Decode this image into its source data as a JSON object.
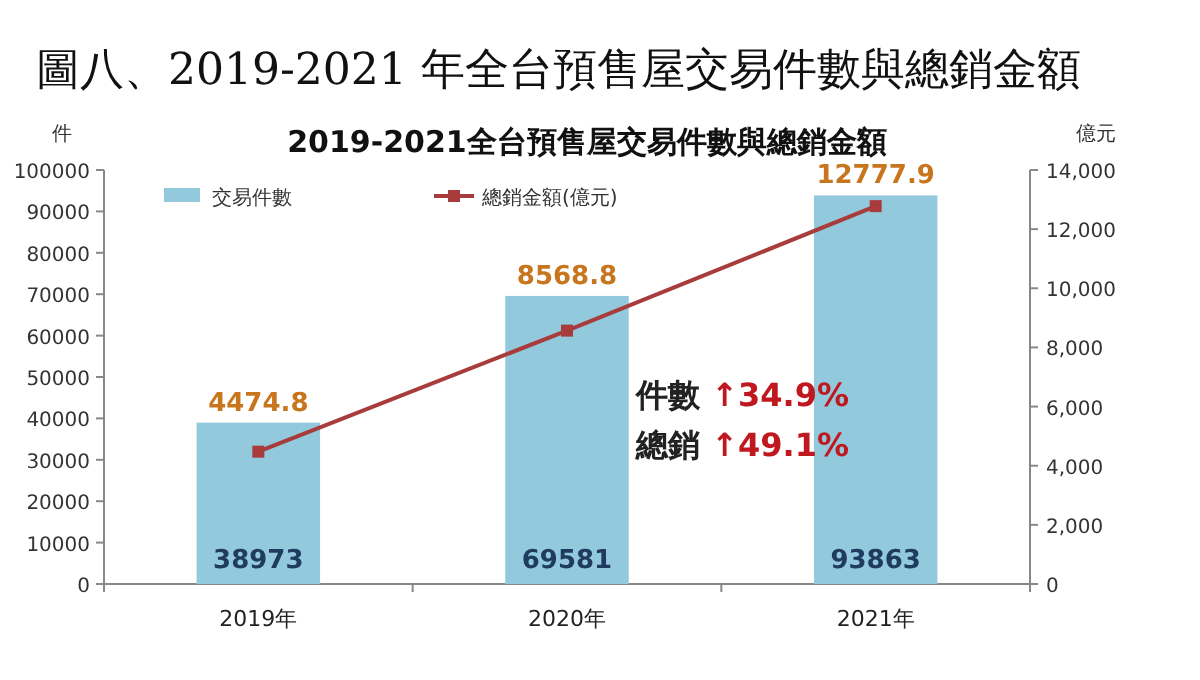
{
  "chart_data": {
    "type": "bar",
    "title": "圖八、2019-2021 年全台預售屋交易件數與總銷金額",
    "subtitle": "2019-2021全台預售屋交易件數與總銷金額",
    "ylabel": "件",
    "y2label": "億元",
    "categories": [
      "2019年",
      "2020年",
      "2021年"
    ],
    "series": [
      {
        "name": "交易件數",
        "color": "#92c9dc",
        "values": [
          38973,
          69581,
          93863
        ]
      },
      {
        "name": "總銷金額(億元)",
        "type": "line",
        "axis": "y2",
        "color": "#a83c3c",
        "marker": "square",
        "values": [
          4474.8,
          8568.8,
          12777.9
        ]
      }
    ],
    "data_labels": true,
    "annotations": [
      "件數 ↑34.9%",
      "總銷 ↑49.1%"
    ],
    "ylim": [
      0,
      100000
    ],
    "yticks": [
      0,
      10000,
      20000,
      30000,
      40000,
      50000,
      60000,
      70000,
      80000,
      90000,
      100000
    ],
    "y2lim": [
      0,
      14000
    ],
    "y2ticks": [
      0,
      {
        "value": 2000,
        "label": "2,000"
      },
      {
        "value": 4000,
        "label": "4,000"
      },
      {
        "value": 6000,
        "label": "6,000"
      },
      {
        "value": 8000,
        "label": "8,000"
      },
      {
        "value": 10000,
        "label": "10,000"
      },
      {
        "value": 12000,
        "label": "12,000"
      },
      {
        "value": 14000,
        "label": "14,000"
      }
    ],
    "grid": false,
    "legend": "top left"
  }
}
